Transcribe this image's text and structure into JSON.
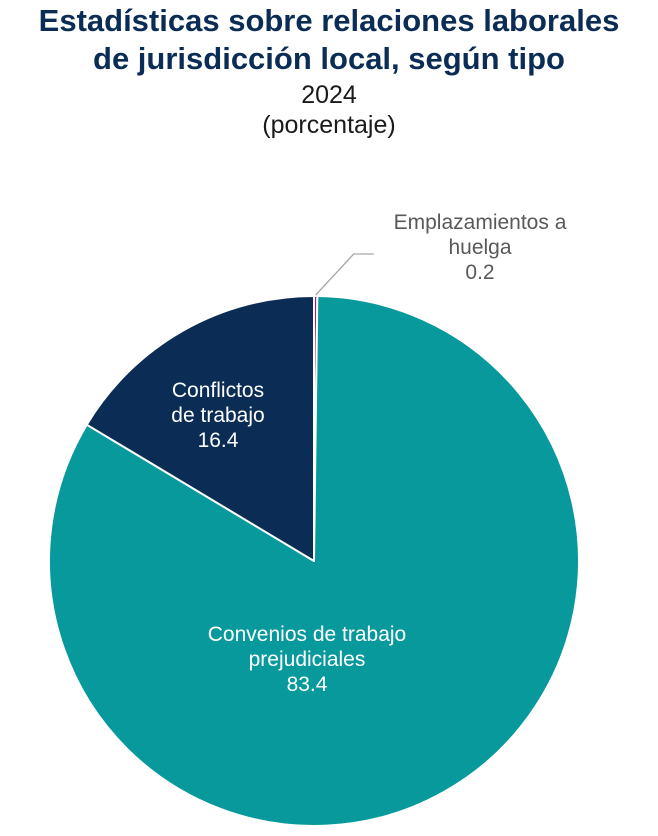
{
  "chart_data": {
    "type": "pie",
    "title": "Estadísticas sobre relaciones laborales de jurisdicción local, según tipo",
    "subtitle": "2024",
    "unit_label": "(porcentaje)",
    "slices": [
      {
        "label": "Emplazamientos a huelga",
        "label_lines": [
          "Emplazamientos a",
          "huelga"
        ],
        "value": 0.2,
        "value_label": "0.2",
        "color": "#b0127a"
      },
      {
        "label": "Convenios de trabajo prejudiciales",
        "label_lines": [
          "Convenios de trabajo",
          "prejudiciales"
        ],
        "value": 83.4,
        "value_label": "83.4",
        "color": "#08999c"
      },
      {
        "label": "Conflictos de trabajo",
        "label_lines": [
          "Conflictos",
          "de trabajo"
        ],
        "value": 16.4,
        "value_label": "16.4",
        "color": "#0a2c55"
      }
    ]
  }
}
